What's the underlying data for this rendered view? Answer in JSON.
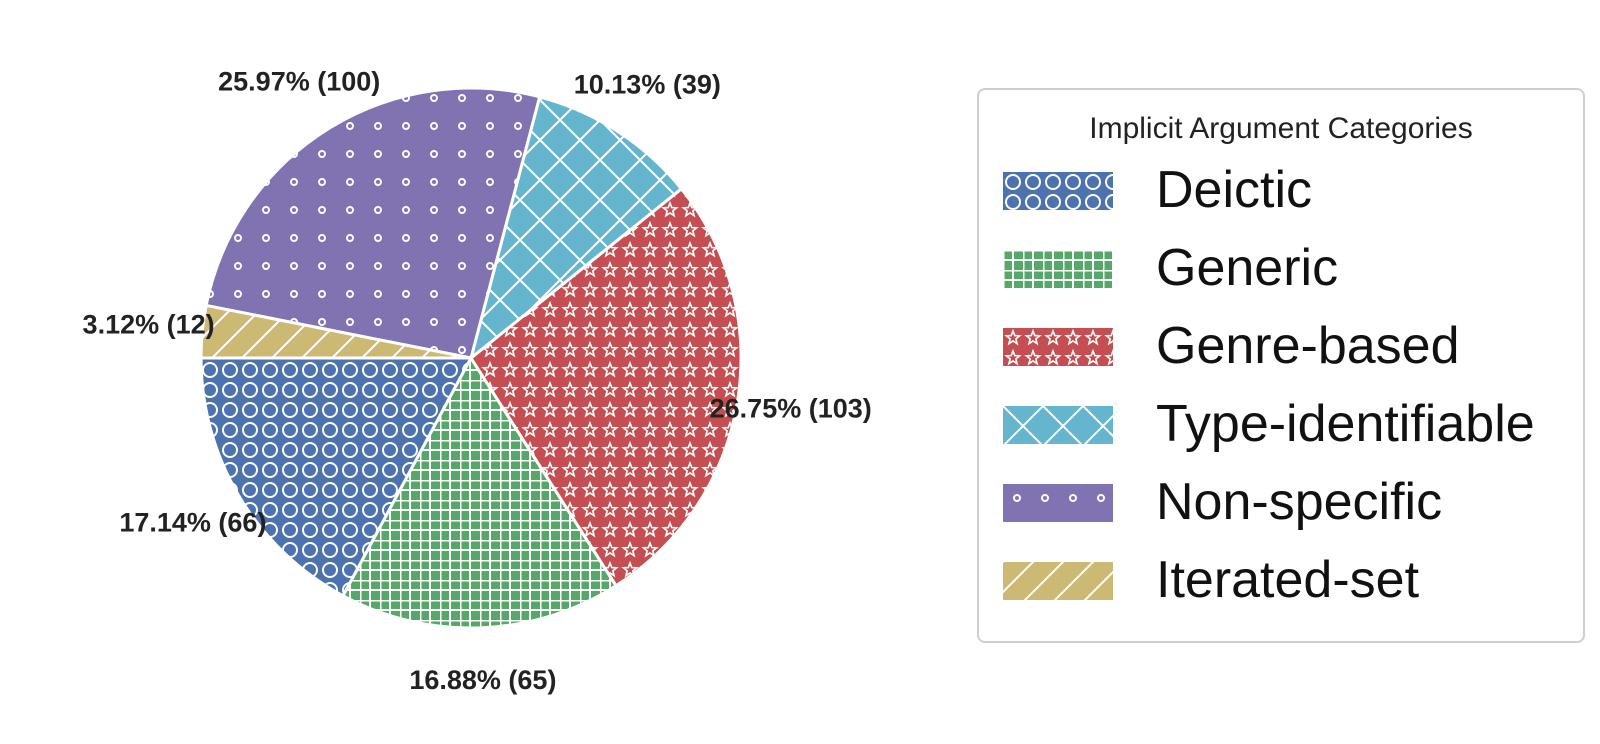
{
  "chart_data": {
    "type": "pie",
    "legend_title": "Implicit Argument Categories",
    "legend_position": "right",
    "slices": [
      {
        "name": "Deictic",
        "count": 66,
        "percent": 17.14,
        "label": "17.14%  (66)",
        "color": "#4c72b0",
        "pattern": "circles"
      },
      {
        "name": "Generic",
        "count": 65,
        "percent": 16.88,
        "label": "16.88%  (65)",
        "color": "#55a868",
        "pattern": "grid"
      },
      {
        "name": "Genre-based",
        "count": 103,
        "percent": 26.75,
        "label": "26.75%  (103)",
        "color": "#c44e52",
        "pattern": "stars"
      },
      {
        "name": "Type-identifiable",
        "count": 39,
        "percent": 10.13,
        "label": "10.13%  (39)",
        "color": "#64b5cd",
        "pattern": "crosshatch"
      },
      {
        "name": "Non-specific",
        "count": 100,
        "percent": 25.97,
        "label": "25.97%  (100)",
        "color": "#8172b2",
        "pattern": "small-dots"
      },
      {
        "name": "Iterated-set",
        "count": 12,
        "percent": 3.12,
        "label": "3.12%  (12)",
        "color": "#ccb974",
        "pattern": "diagonal"
      }
    ],
    "legend_order": [
      "Deictic",
      "Generic",
      "Genre-based",
      "Type-identifiable",
      "Non-specific",
      "Iterated-set"
    ]
  }
}
